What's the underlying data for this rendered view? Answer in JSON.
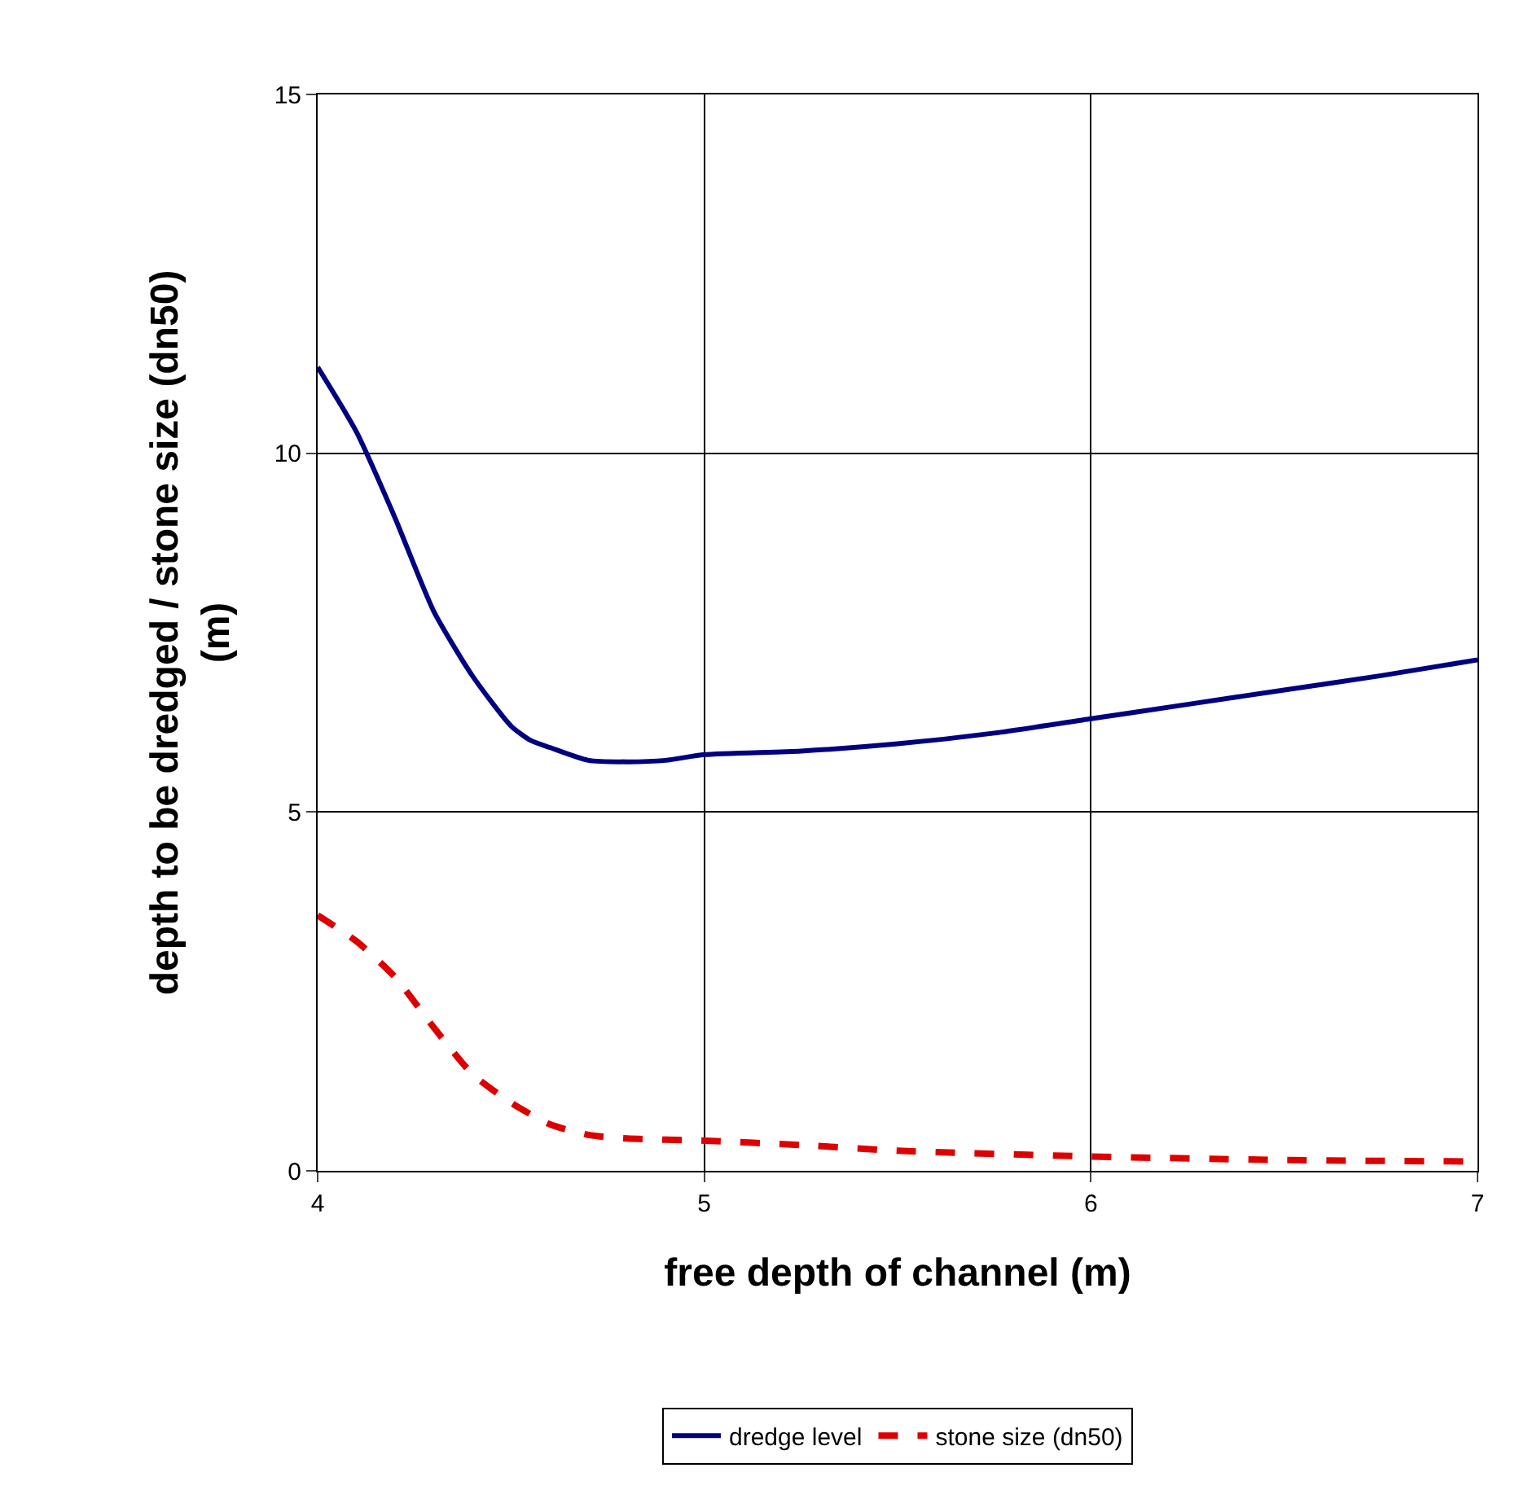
{
  "chart_data": {
    "type": "line",
    "xlabel": "free depth of channel (m)",
    "ylabel": "depth to be dredged / stone size (dn50)\n(m)",
    "xlim": [
      4,
      7
    ],
    "xticks": [
      4,
      5,
      6,
      7
    ],
    "ylim": [
      0,
      15
    ],
    "yticks": [
      0,
      5,
      10,
      15
    ],
    "grid": true,
    "legend": "bottom",
    "series": [
      {
        "name": "dredge level",
        "color": "#000080",
        "line_style": "solid",
        "x": [
          4,
          4.1,
          4.2,
          4.3,
          4.4,
          4.5,
          4.55,
          4.6,
          4.7,
          4.8,
          4.9,
          5,
          5.25,
          5.5,
          5.75,
          6,
          6.25,
          6.5,
          6.75,
          7
        ],
        "values": [
          11.2,
          10.3,
          9.1,
          7.8,
          6.9,
          6.2,
          6.0,
          5.9,
          5.72,
          5.7,
          5.72,
          5.8,
          5.85,
          5.95,
          6.1,
          6.3,
          6.5,
          6.7,
          6.9,
          7.12
        ]
      },
      {
        "name": "stone size (dn50)",
        "color": "#dd0000",
        "line_style": "dashed",
        "x": [
          4,
          4.1,
          4.2,
          4.3,
          4.4,
          4.5,
          4.6,
          4.7,
          4.8,
          5,
          5.25,
          5.5,
          6,
          6.5,
          7
        ],
        "values": [
          3.56,
          3.2,
          2.7,
          2.0,
          1.35,
          0.95,
          0.65,
          0.5,
          0.45,
          0.42,
          0.36,
          0.28,
          0.2,
          0.15,
          0.13
        ]
      }
    ]
  }
}
